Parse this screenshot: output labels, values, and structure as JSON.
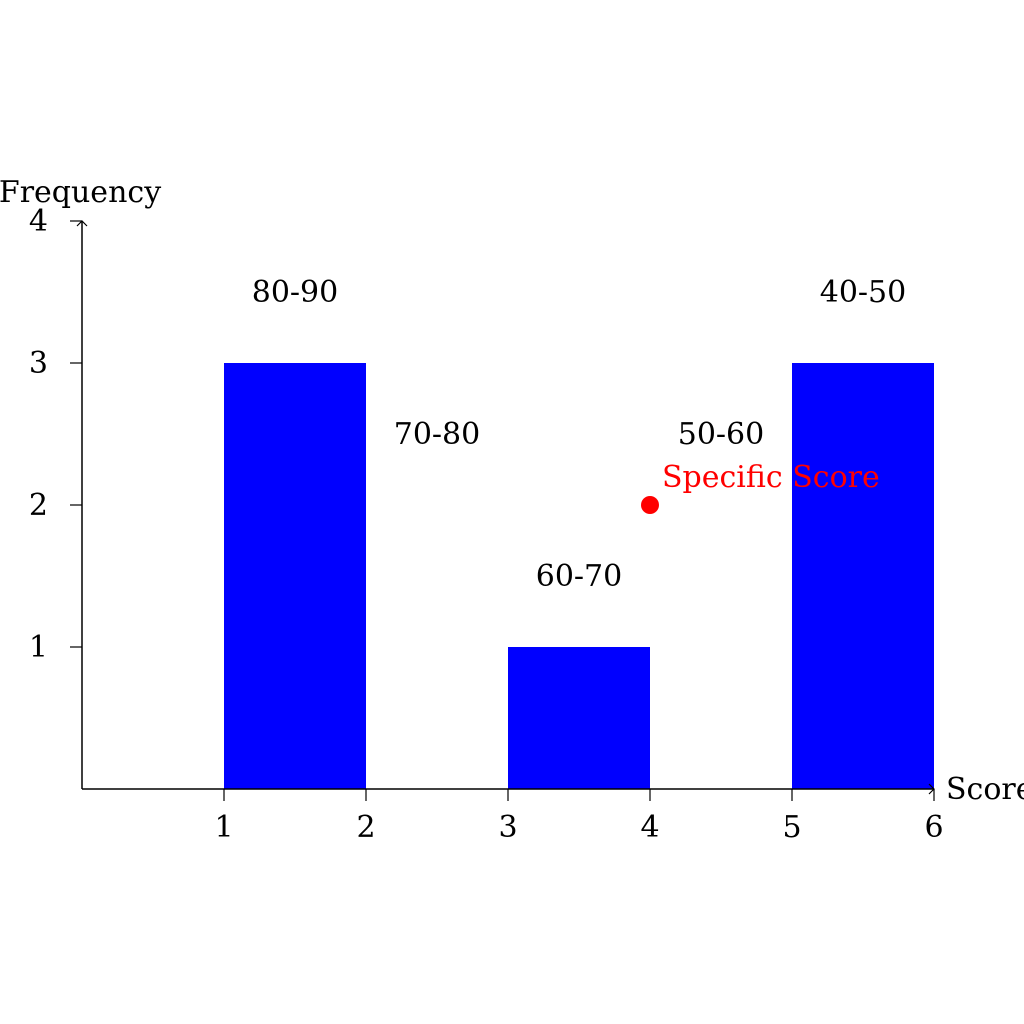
{
  "chart_data": {
    "type": "bar",
    "xlabel": "Score",
    "ylabel": "Frequency",
    "xlim": [
      0,
      6
    ],
    "ylim": [
      0,
      4
    ],
    "x_ticks": [
      "1",
      "2",
      "3",
      "4",
      "5",
      "6"
    ],
    "y_ticks": [
      "1",
      "2",
      "3",
      "4"
    ],
    "bars": [
      {
        "label": "80-90",
        "x_start": 1,
        "x_end": 2,
        "value": 3
      },
      {
        "label": "70-80",
        "x_start": 2,
        "x_end": 3,
        "value": 0
      },
      {
        "label": "60-70",
        "x_start": 3,
        "x_end": 4,
        "value": 1
      },
      {
        "label": "50-60",
        "x_start": 4,
        "x_end": 5,
        "value": 0
      },
      {
        "label": "40-50",
        "x_start": 5,
        "x_end": 6,
        "value": 3
      }
    ],
    "annotation": {
      "label": "Specific Score",
      "x": 4,
      "y": 2
    },
    "bar_color": "#0000ff",
    "annotation_color": "#ff0000",
    "grid": false
  }
}
